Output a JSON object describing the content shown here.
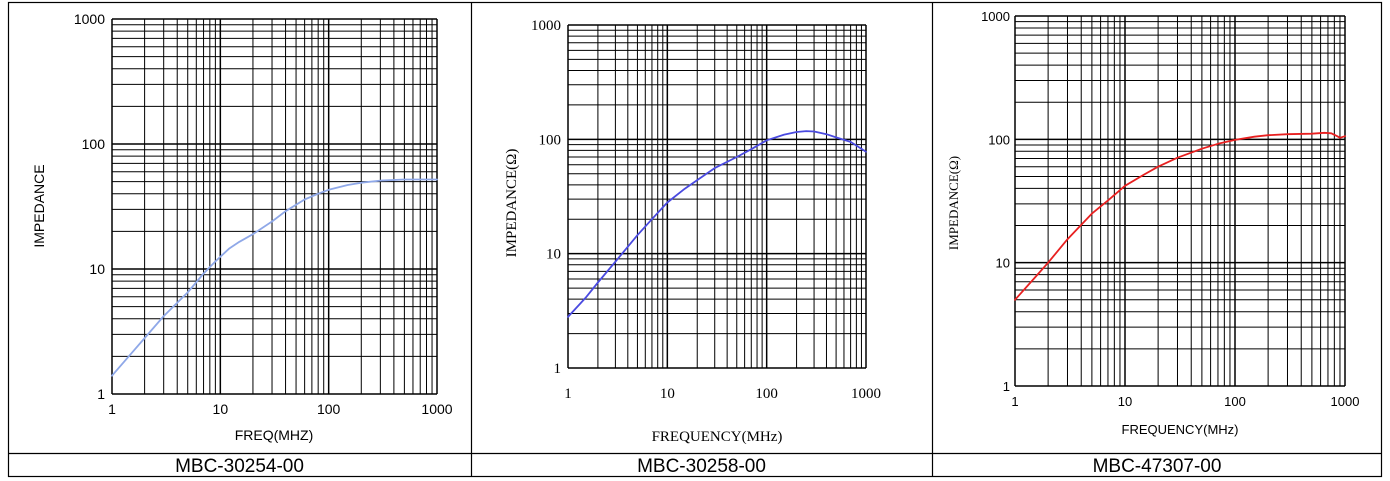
{
  "chart_data": [
    {
      "type": "line",
      "x_scale": "log",
      "y_scale": "log",
      "xlim": [
        1,
        1000
      ],
      "ylim": [
        1,
        1000
      ],
      "grid": true,
      "xlabel": "FREQ(MHZ)",
      "ylabel": "IMPEDANCE",
      "x_tick_labels": [
        "1",
        "10",
        "100",
        "1000"
      ],
      "y_tick_labels": [
        "1",
        "10",
        "100",
        "1000"
      ],
      "line_color": "#8fa8e8",
      "caption": "MBC-30254-00",
      "series": [
        {
          "x": [
            1,
            1.5,
            2,
            3,
            5,
            7,
            9,
            12,
            15,
            20,
            30,
            40,
            60,
            80,
            100,
            150,
            200,
            300,
            500,
            700,
            1000
          ],
          "y": [
            1.4,
            2.1,
            2.8,
            4.2,
            6.5,
            9.2,
            11.5,
            14.5,
            16.5,
            19,
            24,
            29,
            36,
            40,
            43,
            47,
            49,
            51,
            52,
            52,
            52
          ]
        }
      ]
    },
    {
      "type": "line",
      "x_scale": "log",
      "y_scale": "log",
      "xlim": [
        1,
        1000
      ],
      "ylim": [
        1,
        1000
      ],
      "grid": true,
      "xlabel": "FREQUENCY(MHz)",
      "ylabel": "IMPEDANCE(Ω)",
      "x_tick_labels": [
        "1",
        "10",
        "100",
        "1000"
      ],
      "y_tick_labels": [
        "1",
        "10",
        "100",
        "1000"
      ],
      "line_color": "#4a4ae0",
      "caption": "MBC-30258-00",
      "series": [
        {
          "x": [
            1,
            1.5,
            2,
            3,
            5,
            7,
            10,
            15,
            20,
            30,
            50,
            70,
            100,
            150,
            200,
            250,
            300,
            400,
            500,
            700,
            1000
          ],
          "y": [
            2.8,
            4.1,
            5.6,
            8.5,
            14.5,
            20,
            28,
            37,
            44,
            56,
            70,
            82,
            98,
            110,
            116,
            118,
            117,
            111,
            104,
            95,
            78
          ]
        }
      ]
    },
    {
      "type": "line",
      "x_scale": "log",
      "y_scale": "log",
      "xlim": [
        1,
        1000
      ],
      "ylim": [
        1,
        1000
      ],
      "grid": true,
      "xlabel": "FREQUENCY(MHz)",
      "ylabel": "IMPEDANCE(Ω)",
      "x_tick_labels": [
        "1",
        "10",
        "100",
        "1000"
      ],
      "y_tick_labels": [
        "1",
        "10",
        "100",
        "1000"
      ],
      "line_color": "#e82020",
      "caption": "MBC-47307-00",
      "series": [
        {
          "x": [
            1,
            1.5,
            2,
            3,
            5,
            7,
            10,
            15,
            20,
            30,
            50,
            70,
            100,
            150,
            200,
            300,
            500,
            650,
            750,
            850,
            900,
            1000
          ],
          "y": [
            5,
            7.5,
            10,
            15.5,
            25,
            32,
            42,
            52,
            60,
            71,
            84,
            92,
            99,
            105,
            108,
            110,
            111,
            113,
            112,
            106,
            103,
            106
          ]
        }
      ]
    }
  ]
}
